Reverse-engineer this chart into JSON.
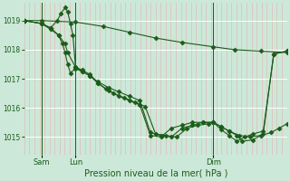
{
  "bg_color": "#cce8d8",
  "line_color": "#1a5c1a",
  "grid_color": "#ffffff",
  "minor_grid_color": "#e8b0b0",
  "xlabel": "Pression niveau de la mer( hPa )",
  "ylim": [
    1014.4,
    1019.6
  ],
  "yticks": [
    1015,
    1016,
    1017,
    1018,
    1019
  ],
  "xtick_labels": [
    "Sam",
    "Lun",
    "Dim"
  ],
  "xtick_pos": [
    0.065,
    0.195,
    0.72
  ],
  "num_minor_vcols": 52,
  "vlines_x": [
    0.065,
    0.195,
    0.72
  ],
  "series": [
    {
      "x": [
        0.0,
        0.065,
        0.195,
        0.3,
        0.4,
        0.5,
        0.6,
        0.72,
        0.8,
        0.9,
        1.0
      ],
      "y": [
        1019.0,
        1019.0,
        1018.95,
        1018.8,
        1018.6,
        1018.4,
        1018.25,
        1018.1,
        1018.0,
        1017.95,
        1017.9
      ],
      "marker": "D",
      "markersize": 2.5,
      "linewidth": 0.8
    },
    {
      "x": [
        0.0,
        0.065,
        0.1,
        0.13,
        0.155,
        0.165,
        0.195,
        0.22,
        0.25,
        0.28,
        0.31,
        0.34,
        0.38,
        0.42,
        0.46,
        0.5,
        0.54,
        0.58,
        0.62,
        0.66,
        0.7,
        0.72,
        0.75,
        0.78,
        0.82,
        0.86,
        0.9,
        0.94,
        0.97,
        1.0
      ],
      "y": [
        1019.0,
        1018.9,
        1018.7,
        1018.5,
        1018.2,
        1017.9,
        1017.4,
        1017.3,
        1017.15,
        1016.85,
        1016.65,
        1016.5,
        1016.35,
        1016.2,
        1016.05,
        1015.1,
        1015.05,
        1015.0,
        1015.3,
        1015.4,
        1015.45,
        1015.5,
        1015.35,
        1015.2,
        1015.05,
        1015.0,
        1015.05,
        1015.15,
        1015.3,
        1015.45
      ],
      "marker": "D",
      "markersize": 2.5,
      "linewidth": 0.8
    },
    {
      "x": [
        0.0,
        0.065,
        0.1,
        0.13,
        0.145,
        0.155,
        0.165,
        0.175,
        0.195,
        0.22,
        0.25,
        0.28,
        0.32,
        0.36,
        0.4,
        0.44,
        0.48,
        0.52,
        0.56,
        0.6,
        0.64,
        0.68,
        0.72,
        0.75,
        0.78,
        0.81,
        0.83,
        0.87,
        0.91,
        0.95,
        1.0
      ],
      "y": [
        1019.0,
        1018.9,
        1018.75,
        1018.5,
        1018.2,
        1017.9,
        1017.5,
        1017.2,
        1017.35,
        1017.25,
        1017.1,
        1016.9,
        1016.7,
        1016.55,
        1016.4,
        1016.25,
        1015.15,
        1015.05,
        1015.0,
        1015.3,
        1015.4,
        1015.5,
        1015.5,
        1015.35,
        1015.2,
        1015.05,
        1014.85,
        1014.9,
        1015.1,
        1017.85,
        1017.95
      ],
      "marker": "D",
      "markersize": 2.5,
      "linewidth": 0.8
    },
    {
      "x": [
        0.0,
        0.065,
        0.1,
        0.125,
        0.14,
        0.155,
        0.165,
        0.175,
        0.185,
        0.195,
        0.22,
        0.25,
        0.28,
        0.32,
        0.36,
        0.4,
        0.44,
        0.48,
        0.52,
        0.56,
        0.6,
        0.64,
        0.68,
        0.72,
        0.75,
        0.78,
        0.81,
        0.84,
        0.87,
        0.91,
        0.95,
        1.0
      ],
      "y": [
        1019.0,
        1018.9,
        1018.75,
        1019.0,
        1019.25,
        1019.45,
        1019.3,
        1018.9,
        1018.5,
        1017.4,
        1017.25,
        1017.1,
        1016.85,
        1016.6,
        1016.4,
        1016.25,
        1016.1,
        1015.05,
        1015.0,
        1015.3,
        1015.4,
        1015.5,
        1015.5,
        1015.5,
        1015.25,
        1015.05,
        1014.85,
        1015.0,
        1015.1,
        1015.2,
        1017.85,
        1017.95
      ],
      "marker": "D",
      "markersize": 2.5,
      "linewidth": 0.8
    }
  ]
}
